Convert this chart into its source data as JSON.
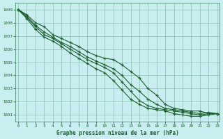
{
  "title": "Graphe pression niveau de la mer (hPa)",
  "bg_color": "#c8eef0",
  "grid_color": "#4d8b6f",
  "line_color": "#1a5c2a",
  "xlim": [
    -0.3,
    23.3
  ],
  "ylim": [
    1030.5,
    1039.5
  ],
  "yticks": [
    1031,
    1032,
    1033,
    1034,
    1035,
    1036,
    1037,
    1038,
    1039
  ],
  "xticks": [
    0,
    1,
    2,
    3,
    4,
    5,
    6,
    7,
    8,
    9,
    10,
    11,
    12,
    13,
    14,
    15,
    16,
    17,
    18,
    19,
    20,
    21,
    22,
    23
  ],
  "series": [
    [
      1039.0,
      1038.6,
      1038.0,
      1037.7,
      1037.1,
      1036.8,
      1036.5,
      1036.2,
      1035.8,
      1035.5,
      1035.3,
      1035.2,
      1034.8,
      1034.3,
      1033.8,
      1033.0,
      1032.5,
      1031.8,
      1031.5,
      1031.4,
      1031.3,
      1031.3,
      1031.1,
      1031.1
    ],
    [
      1039.0,
      1038.5,
      1037.8,
      1037.3,
      1036.9,
      1036.5,
      1036.2,
      1035.8,
      1035.4,
      1035.1,
      1034.8,
      1034.5,
      1034.0,
      1033.3,
      1032.8,
      1032.2,
      1031.8,
      1031.5,
      1031.4,
      1031.3,
      1031.2,
      1031.1,
      1031.2,
      1031.1
    ],
    [
      1039.0,
      1038.4,
      1037.7,
      1037.1,
      1036.8,
      1036.4,
      1036.0,
      1035.6,
      1035.2,
      1034.9,
      1034.6,
      1034.2,
      1033.5,
      1032.8,
      1032.1,
      1031.7,
      1031.5,
      1031.4,
      1031.3,
      1031.2,
      1031.1,
      1031.0,
      1031.1,
      1031.1
    ],
    [
      1039.0,
      1038.3,
      1037.5,
      1036.9,
      1036.6,
      1036.2,
      1035.7,
      1035.3,
      1034.9,
      1034.5,
      1034.2,
      1033.6,
      1032.9,
      1032.2,
      1031.8,
      1031.5,
      1031.4,
      1031.3,
      1031.1,
      1031.0,
      1030.9,
      1030.9,
      1031.0,
      1031.1
    ]
  ]
}
